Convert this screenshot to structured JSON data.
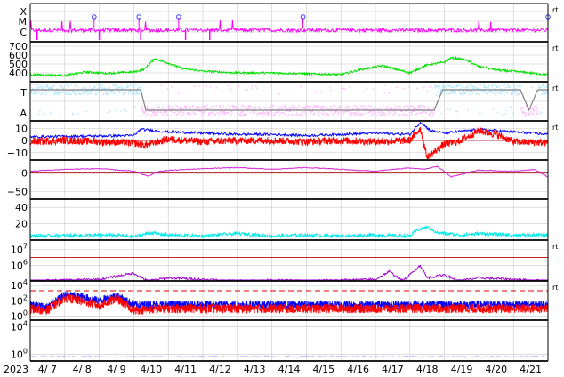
{
  "chart_data": {
    "type": "line",
    "year_label": "2023",
    "x_ticks": [
      "4/ 7",
      "4/ 8",
      "4/ 9",
      "4/10",
      "4/11",
      "4/12",
      "4/13",
      "4/14",
      "4/15",
      "4/16",
      "4/17",
      "4/18",
      "4/19",
      "4/20",
      "4/21"
    ],
    "panels": [
      {
        "id": "flare",
        "y_labels": [
          "X",
          "M",
          "C"
        ],
        "right_mark": "rt",
        "series": [
          {
            "color": "#ff00ff"
          }
        ],
        "flare_marker_days": [
          1.85,
          3.15,
          4.3,
          7.9,
          15.0
        ]
      },
      {
        "id": "speed",
        "y_ticks": [
          {
            "label": "700",
            "value": 700
          },
          {
            "label": "600",
            "value": 600
          },
          {
            "label": "500",
            "value": 500
          },
          {
            "label": "400",
            "value": 400
          }
        ],
        "ylim": [
          300,
          750
        ],
        "right_mark": "rt",
        "series": [
          {
            "color": "#00e000",
            "profile": [
              [
                0.0,
                380
              ],
              [
                1.0,
                370
              ],
              [
                1.6,
                410
              ],
              [
                2.2,
                395
              ],
              [
                3.0,
                410
              ],
              [
                3.3,
                440
              ],
              [
                3.6,
                560
              ],
              [
                4.0,
                510
              ],
              [
                4.4,
                450
              ],
              [
                5.0,
                420
              ],
              [
                6.0,
                400
              ],
              [
                7.0,
                400
              ],
              [
                8.0,
                390
              ],
              [
                9.0,
                380
              ],
              [
                9.6,
                440
              ],
              [
                10.2,
                480
              ],
              [
                10.8,
                420
              ],
              [
                11.0,
                400
              ],
              [
                11.5,
                490
              ],
              [
                12.0,
                520
              ],
              [
                12.2,
                570
              ],
              [
                12.6,
                550
              ],
              [
                13.0,
                470
              ],
              [
                13.6,
                430
              ],
              [
                14.2,
                410
              ],
              [
                15.0,
                380
              ]
            ]
          }
        ]
      },
      {
        "id": "imf_direction",
        "y_labels": [
          "T",
          "A"
        ],
        "right_mark": "rt",
        "series": [
          {
            "color": "#a8e4ff",
            "segments": [
              [
                0.0,
                3.2
              ],
              [
                11.7,
                14.2
              ],
              [
                14.7,
                15.0
              ]
            ]
          },
          {
            "color": "#ffb4ff",
            "segments": [
              [
                3.2,
                11.7
              ],
              [
                14.2,
                14.7
              ]
            ]
          }
        ]
      },
      {
        "id": "bz",
        "y_ticks": [
          {
            "label": "10",
            "value": 10
          },
          {
            "label": "0",
            "value": 0
          },
          {
            "label": "−10",
            "value": -10
          }
        ],
        "ylim": [
          -16,
          16
        ],
        "right_mark": "rt",
        "series": [
          {
            "color": "#0000ff",
            "profile": [
              [
                0.0,
                3
              ],
              [
                3.0,
                4
              ],
              [
                3.2,
                9
              ],
              [
                4.0,
                7
              ],
              [
                5.0,
                6
              ],
              [
                6.0,
                5
              ],
              [
                7.0,
                5
              ],
              [
                8.0,
                4
              ],
              [
                9.0,
                5
              ],
              [
                10.0,
                6
              ],
              [
                11.0,
                5
              ],
              [
                11.3,
                15
              ],
              [
                11.6,
                8
              ],
              [
                12.0,
                6
              ],
              [
                13.0,
                9
              ],
              [
                14.0,
                7
              ],
              [
                15.0,
                5
              ]
            ]
          },
          {
            "color": "#ff0000",
            "profile": [
              [
                0.0,
                -1
              ],
              [
                1.0,
                0
              ],
              [
                2.0,
                -1
              ],
              [
                3.0,
                -2
              ],
              [
                3.3,
                -4
              ],
              [
                4.0,
                1
              ],
              [
                5.0,
                -1
              ],
              [
                6.0,
                0
              ],
              [
                7.0,
                0
              ],
              [
                8.0,
                -1
              ],
              [
                9.0,
                0
              ],
              [
                10.0,
                -1
              ],
              [
                11.0,
                0
              ],
              [
                11.3,
                10
              ],
              [
                11.5,
                -14
              ],
              [
                12.0,
                -3
              ],
              [
                12.4,
                -1
              ],
              [
                13.0,
                8
              ],
              [
                13.5,
                5
              ],
              [
                14.0,
                -1
              ],
              [
                15.0,
                -2
              ]
            ]
          }
        ]
      },
      {
        "id": "dst",
        "y_ticks": [
          {
            "label": "0",
            "value": 0
          },
          {
            "label": "−50",
            "value": -50
          }
        ],
        "ylim": [
          -70,
          35
        ],
        "series": [
          {
            "color": "#d020d0",
            "profile": [
              [
                0.0,
                5
              ],
              [
                1.0,
                10
              ],
              [
                2.0,
                12
              ],
              [
                3.0,
                5
              ],
              [
                3.4,
                -8
              ],
              [
                3.8,
                6
              ],
              [
                5.0,
                12
              ],
              [
                6.0,
                15
              ],
              [
                7.0,
                10
              ],
              [
                8.0,
                15
              ],
              [
                9.0,
                10
              ],
              [
                10.0,
                5
              ],
              [
                11.0,
                14
              ],
              [
                11.4,
                10
              ],
              [
                11.8,
                18
              ],
              [
                12.2,
                -10
              ],
              [
                12.5,
                -3
              ],
              [
                13.0,
                8
              ],
              [
                14.0,
                5
              ],
              [
                14.6,
                10
              ],
              [
                15.0,
                -10
              ]
            ]
          }
        ]
      },
      {
        "id": "kp",
        "y_ticks": [
          {
            "label": "40",
            "value": 40
          },
          {
            "label": "20",
            "value": 20
          }
        ],
        "ylim": [
          0,
          50
        ],
        "series": [
          {
            "color": "#00e8e8",
            "profile": [
              [
                0.0,
                5
              ],
              [
                2.5,
                6
              ],
              [
                3.0,
                4
              ],
              [
                3.5,
                9
              ],
              [
                4.0,
                6
              ],
              [
                5.0,
                5
              ],
              [
                6.0,
                8
              ],
              [
                7.0,
                5
              ],
              [
                8.0,
                6
              ],
              [
                9.0,
                5
              ],
              [
                10.0,
                6
              ],
              [
                11.0,
                5
              ],
              [
                11.2,
                12
              ],
              [
                11.5,
                16
              ],
              [
                11.8,
                9
              ],
              [
                12.5,
                6
              ],
              [
                13.0,
                8
              ],
              [
                14.0,
                6
              ],
              [
                15.0,
                6
              ]
            ]
          }
        ]
      },
      {
        "id": "electron_flux",
        "y_ticks": [
          {
            "label": "10",
            "exp": "7",
            "value": 7
          },
          {
            "label": "10",
            "exp": "6",
            "value": 6
          }
        ],
        "ylim": [
          5,
          7.6
        ],
        "right_mark": "rt",
        "series": [
          {
            "color": "#9c00d0",
            "profile": [
              [
                0.0,
                5.0
              ],
              [
                2.0,
                5.1
              ],
              [
                3.0,
                5.5
              ],
              [
                3.4,
                5.0
              ],
              [
                4.0,
                5.2
              ],
              [
                5.0,
                5.1
              ],
              [
                6.0,
                5.0
              ],
              [
                7.0,
                5.05
              ],
              [
                8.0,
                5.0
              ],
              [
                10.0,
                5.1
              ],
              [
                10.4,
                5.6
              ],
              [
                10.8,
                5.0
              ],
              [
                11.3,
                6.0
              ],
              [
                11.5,
                5.2
              ],
              [
                12.0,
                5.4
              ],
              [
                12.4,
                5.0
              ],
              [
                13.0,
                5.2
              ],
              [
                15.0,
                5.0
              ]
            ]
          }
        ]
      },
      {
        "id": "proton_flux",
        "y_ticks": [
          {
            "label": "10",
            "exp": "4",
            "value": 4
          },
          {
            "label": "10",
            "exp": "2",
            "value": 2
          },
          {
            "label": "10",
            "exp": "0",
            "value": 0
          }
        ],
        "ylim": [
          -0.5,
          4.6
        ],
        "right_mark": "rt",
        "series": [
          {
            "color": "#0000ff",
            "profile": [
              [
                0.0,
                1.5
              ],
              [
                0.5,
                1.2
              ],
              [
                1.0,
                2.8
              ],
              [
                1.5,
                2.5
              ],
              [
                2.0,
                2.0
              ],
              [
                2.5,
                2.7
              ],
              [
                3.0,
                1.5
              ],
              [
                4.0,
                1.5
              ],
              [
                15.0,
                1.5
              ]
            ]
          },
          {
            "color": "#ff0000",
            "profile": [
              [
                0.0,
                1.0
              ],
              [
                0.5,
                0.8
              ],
              [
                1.0,
                2.4
              ],
              [
                1.5,
                2.0
              ],
              [
                2.0,
                1.4
              ],
              [
                2.5,
                2.3
              ],
              [
                3.0,
                0.8
              ],
              [
                4.0,
                1.0
              ],
              [
                15.0,
                1.0
              ]
            ]
          }
        ]
      },
      {
        "id": "bottom",
        "y_ticks": [
          {
            "label": "10",
            "exp": "4",
            "value": 4
          },
          {
            "label": "10",
            "exp": "0",
            "value": 0
          }
        ],
        "ylim": [
          -1,
          5
        ],
        "series": [
          {
            "color": "#0000ff",
            "profile": [
              [
                0.0,
                -0.4
              ],
              [
                15.0,
                -0.4
              ]
            ]
          }
        ]
      }
    ]
  }
}
